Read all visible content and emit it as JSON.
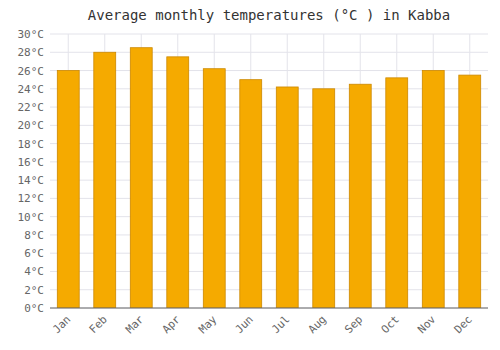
{
  "chart_data": {
    "type": "bar",
    "title": "Average monthly temperatures (°C ) in Kabba",
    "categories": [
      "Jan",
      "Feb",
      "Mar",
      "Apr",
      "May",
      "Jun",
      "Jul",
      "Aug",
      "Sep",
      "Oct",
      "Nov",
      "Dec"
    ],
    "values": [
      26.0,
      28.0,
      28.5,
      27.5,
      26.2,
      25.0,
      24.2,
      24.0,
      24.5,
      25.2,
      26.0,
      25.5
    ],
    "color": "#F5AA00",
    "ylim": [
      0,
      30
    ],
    "yticks": [
      {
        "value": 0,
        "label": "0°C"
      },
      {
        "value": 2,
        "label": "2°C"
      },
      {
        "value": 4,
        "label": "4°C"
      },
      {
        "value": 6,
        "label": "6°C"
      },
      {
        "value": 8,
        "label": "8°C"
      },
      {
        "value": 10,
        "label": "10°C"
      },
      {
        "value": 12,
        "label": "12°C"
      },
      {
        "value": 14,
        "label": "14°C"
      },
      {
        "value": 16,
        "label": "16°C"
      },
      {
        "value": 18,
        "label": "18°C"
      },
      {
        "value": 20,
        "label": "20°C"
      },
      {
        "value": 22,
        "label": "22°C"
      },
      {
        "value": 24,
        "label": "24°C"
      },
      {
        "value": 26,
        "label": "26°C"
      },
      {
        "value": 28,
        "label": "28°C"
      },
      {
        "value": 30,
        "label": "30°C"
      }
    ],
    "grid": true
  }
}
